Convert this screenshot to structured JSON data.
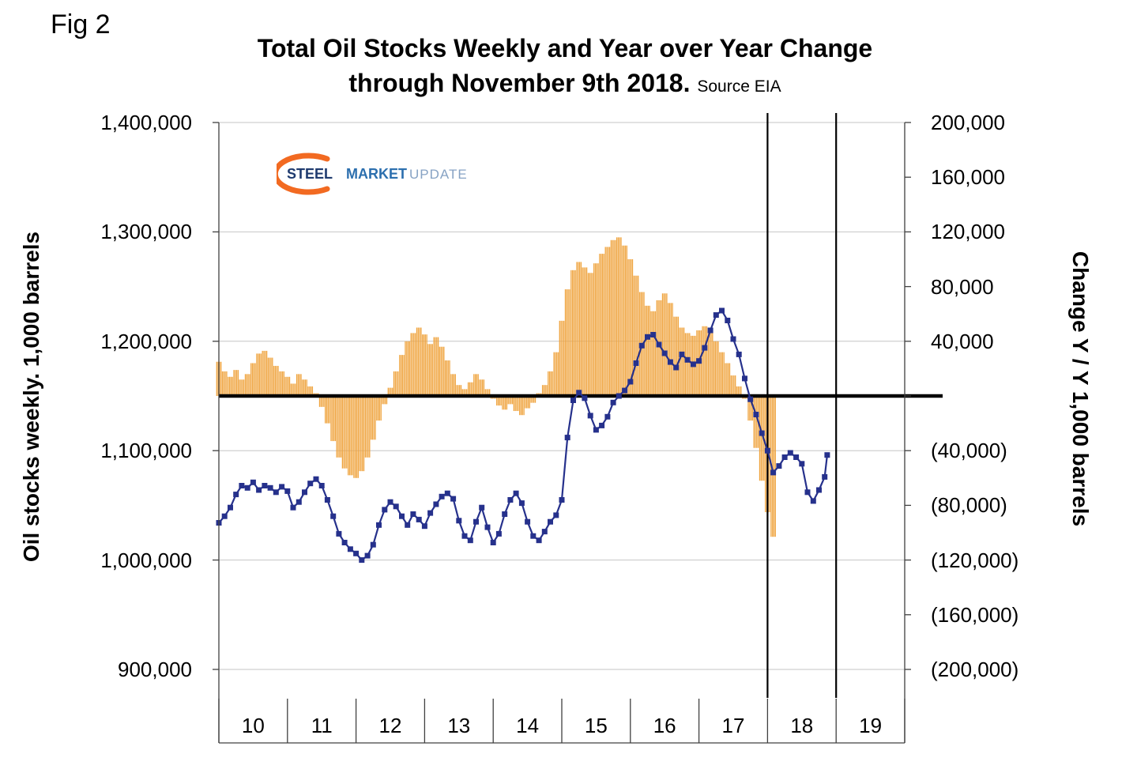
{
  "fig_label": "Fig 2",
  "title": {
    "line1": "Total Oil Stocks Weekly and Year over Year Change",
    "line2": "through November 9th 2018.",
    "source": "Source EIA"
  },
  "logo": {
    "word1": "STEEL",
    "word2": "MARKET",
    "word3": "UPDATE"
  },
  "colors": {
    "line_series": "#26318c",
    "bar_series": "#efa33d",
    "gridline": "#c6c6c6",
    "axis": "#404040",
    "zero_line": "#000000",
    "marker_line": "#000000",
    "logo_swoosh": "#f26a21"
  },
  "chart_data": {
    "type": "combo",
    "title": "Total Oil Stocks Weekly and Year over Year Change through November 9th 2018. Source EIA",
    "legend_position": "none",
    "grid": "horizontal",
    "left_axis": {
      "label": "Oil stocks weekly. 1,000 barrels",
      "min": 900000,
      "max": 1400000,
      "tick_step": 100000,
      "tick_labels": [
        "1,400,000",
        "1,300,000",
        "1,200,000",
        "1,100,000",
        "1,000,000",
        "900,000"
      ]
    },
    "right_axis": {
      "label": "Change Y / Y 1,000 barrels",
      "min": -200000,
      "max": 200000,
      "tick_step": 40000,
      "tick_labels": [
        "200,000",
        "160,000",
        "120,000",
        "80,000",
        "40,000",
        "",
        "(40,000)",
        "(80,000)",
        "(120,000)",
        "(160,000)",
        "(200,000)"
      ]
    },
    "x_axis": {
      "tick_labels": [
        "10",
        "11",
        "12",
        "13",
        "14",
        "15",
        "16",
        "17",
        "18",
        "19"
      ],
      "start_year": 2010,
      "end_year": 2020
    },
    "zero_line_right_value": 0,
    "marker_line_years": [
      2018,
      2019
    ],
    "series": [
      {
        "name": "yoy-change",
        "type": "bar",
        "axis": "right",
        "points": [
          [
            2010.0,
            25000
          ],
          [
            2010.083,
            18000
          ],
          [
            2010.167,
            14000
          ],
          [
            2010.25,
            19000
          ],
          [
            2010.333,
            12000
          ],
          [
            2010.417,
            16000
          ],
          [
            2010.5,
            24000
          ],
          [
            2010.583,
            31000
          ],
          [
            2010.667,
            33000
          ],
          [
            2010.75,
            28000
          ],
          [
            2010.833,
            22000
          ],
          [
            2010.917,
            18000
          ],
          [
            2011.0,
            14000
          ],
          [
            2011.083,
            9000
          ],
          [
            2011.167,
            16000
          ],
          [
            2011.25,
            12000
          ],
          [
            2011.333,
            7000
          ],
          [
            2011.417,
            2000
          ],
          [
            2011.5,
            -8000
          ],
          [
            2011.583,
            -20000
          ],
          [
            2011.667,
            -33000
          ],
          [
            2011.75,
            -45000
          ],
          [
            2011.833,
            -53000
          ],
          [
            2011.917,
            -58000
          ],
          [
            2012.0,
            -60000
          ],
          [
            2012.083,
            -55000
          ],
          [
            2012.167,
            -45000
          ],
          [
            2012.25,
            -32000
          ],
          [
            2012.333,
            -18000
          ],
          [
            2012.417,
            -6000
          ],
          [
            2012.5,
            6000
          ],
          [
            2012.583,
            18000
          ],
          [
            2012.667,
            30000
          ],
          [
            2012.75,
            40000
          ],
          [
            2012.833,
            46000
          ],
          [
            2012.917,
            50000
          ],
          [
            2013.0,
            45000
          ],
          [
            2013.083,
            38000
          ],
          [
            2013.167,
            43000
          ],
          [
            2013.25,
            36000
          ],
          [
            2013.333,
            26000
          ],
          [
            2013.417,
            16000
          ],
          [
            2013.5,
            8000
          ],
          [
            2013.583,
            5000
          ],
          [
            2013.667,
            10000
          ],
          [
            2013.75,
            16000
          ],
          [
            2013.833,
            12000
          ],
          [
            2013.917,
            5000
          ],
          [
            2014.0,
            -2000
          ],
          [
            2014.083,
            -7000
          ],
          [
            2014.167,
            -10000
          ],
          [
            2014.25,
            -6000
          ],
          [
            2014.333,
            -11000
          ],
          [
            2014.417,
            -14000
          ],
          [
            2014.5,
            -9000
          ],
          [
            2014.583,
            -5000
          ],
          [
            2014.667,
            2000
          ],
          [
            2014.75,
            8000
          ],
          [
            2014.833,
            18000
          ],
          [
            2014.917,
            32000
          ],
          [
            2015.0,
            55000
          ],
          [
            2015.083,
            78000
          ],
          [
            2015.167,
            92000
          ],
          [
            2015.25,
            98000
          ],
          [
            2015.333,
            94000
          ],
          [
            2015.417,
            90000
          ],
          [
            2015.5,
            97000
          ],
          [
            2015.583,
            104000
          ],
          [
            2015.667,
            109000
          ],
          [
            2015.75,
            114000
          ],
          [
            2015.833,
            116000
          ],
          [
            2015.917,
            110000
          ],
          [
            2016.0,
            100000
          ],
          [
            2016.083,
            88000
          ],
          [
            2016.167,
            76000
          ],
          [
            2016.25,
            66000
          ],
          [
            2016.333,
            62000
          ],
          [
            2016.417,
            70000
          ],
          [
            2016.5,
            75000
          ],
          [
            2016.583,
            68000
          ],
          [
            2016.667,
            58000
          ],
          [
            2016.75,
            50000
          ],
          [
            2016.833,
            46000
          ],
          [
            2016.917,
            44000
          ],
          [
            2017.0,
            48000
          ],
          [
            2017.083,
            51000
          ],
          [
            2017.167,
            47000
          ],
          [
            2017.25,
            40000
          ],
          [
            2017.333,
            32000
          ],
          [
            2017.417,
            24000
          ],
          [
            2017.5,
            15000
          ],
          [
            2017.583,
            7000
          ],
          [
            2017.667,
            -2000
          ],
          [
            2017.75,
            -18000
          ],
          [
            2017.833,
            -38000
          ],
          [
            2017.917,
            -62000
          ],
          [
            2018.0,
            -85000
          ],
          [
            2018.083,
            -103000
          ]
        ]
      },
      {
        "name": "oil-stocks-weekly",
        "type": "line",
        "axis": "left",
        "points": [
          [
            2010.0,
            1034000
          ],
          [
            2010.083,
            1040000
          ],
          [
            2010.167,
            1048000
          ],
          [
            2010.25,
            1060000
          ],
          [
            2010.333,
            1068000
          ],
          [
            2010.417,
            1066000
          ],
          [
            2010.5,
            1071000
          ],
          [
            2010.583,
            1064000
          ],
          [
            2010.667,
            1068000
          ],
          [
            2010.75,
            1066000
          ],
          [
            2010.833,
            1062000
          ],
          [
            2010.917,
            1067000
          ],
          [
            2011.0,
            1063000
          ],
          [
            2011.083,
            1048000
          ],
          [
            2011.167,
            1053000
          ],
          [
            2011.25,
            1062000
          ],
          [
            2011.333,
            1070000
          ],
          [
            2011.417,
            1074000
          ],
          [
            2011.5,
            1068000
          ],
          [
            2011.583,
            1055000
          ],
          [
            2011.667,
            1040000
          ],
          [
            2011.75,
            1024000
          ],
          [
            2011.833,
            1016000
          ],
          [
            2011.917,
            1010000
          ],
          [
            2012.0,
            1006000
          ],
          [
            2012.083,
            1000000
          ],
          [
            2012.167,
            1004000
          ],
          [
            2012.25,
            1014000
          ],
          [
            2012.333,
            1032000
          ],
          [
            2012.417,
            1046000
          ],
          [
            2012.5,
            1053000
          ],
          [
            2012.583,
            1049000
          ],
          [
            2012.667,
            1040000
          ],
          [
            2012.75,
            1032000
          ],
          [
            2012.833,
            1042000
          ],
          [
            2012.917,
            1037000
          ],
          [
            2013.0,
            1031000
          ],
          [
            2013.083,
            1043000
          ],
          [
            2013.167,
            1051000
          ],
          [
            2013.25,
            1058000
          ],
          [
            2013.333,
            1061000
          ],
          [
            2013.417,
            1056000
          ],
          [
            2013.5,
            1036000
          ],
          [
            2013.583,
            1022000
          ],
          [
            2013.667,
            1018000
          ],
          [
            2013.75,
            1035000
          ],
          [
            2013.833,
            1048000
          ],
          [
            2013.917,
            1030000
          ],
          [
            2014.0,
            1016000
          ],
          [
            2014.083,
            1024000
          ],
          [
            2014.167,
            1042000
          ],
          [
            2014.25,
            1055000
          ],
          [
            2014.333,
            1061000
          ],
          [
            2014.417,
            1052000
          ],
          [
            2014.5,
            1035000
          ],
          [
            2014.583,
            1022000
          ],
          [
            2014.667,
            1018000
          ],
          [
            2014.75,
            1026000
          ],
          [
            2014.833,
            1035000
          ],
          [
            2014.917,
            1041000
          ],
          [
            2015.0,
            1055000
          ],
          [
            2015.083,
            1112000
          ],
          [
            2015.167,
            1146000
          ],
          [
            2015.25,
            1153000
          ],
          [
            2015.333,
            1148000
          ],
          [
            2015.417,
            1132000
          ],
          [
            2015.5,
            1119000
          ],
          [
            2015.583,
            1123000
          ],
          [
            2015.667,
            1131000
          ],
          [
            2015.75,
            1144000
          ],
          [
            2015.833,
            1150000
          ],
          [
            2015.917,
            1155000
          ],
          [
            2016.0,
            1163000
          ],
          [
            2016.083,
            1180000
          ],
          [
            2016.167,
            1196000
          ],
          [
            2016.25,
            1204000
          ],
          [
            2016.333,
            1206000
          ],
          [
            2016.417,
            1197000
          ],
          [
            2016.5,
            1189000
          ],
          [
            2016.583,
            1181000
          ],
          [
            2016.667,
            1176000
          ],
          [
            2016.75,
            1188000
          ],
          [
            2016.833,
            1183000
          ],
          [
            2016.917,
            1179000
          ],
          [
            2017.0,
            1182000
          ],
          [
            2017.083,
            1194000
          ],
          [
            2017.167,
            1210000
          ],
          [
            2017.25,
            1224000
          ],
          [
            2017.333,
            1228000
          ],
          [
            2017.417,
            1219000
          ],
          [
            2017.5,
            1202000
          ],
          [
            2017.583,
            1188000
          ],
          [
            2017.667,
            1166000
          ],
          [
            2017.75,
            1147000
          ],
          [
            2017.833,
            1133000
          ],
          [
            2017.917,
            1116000
          ],
          [
            2018.0,
            1100000
          ],
          [
            2018.083,
            1080000
          ],
          [
            2018.167,
            1086000
          ],
          [
            2018.25,
            1094000
          ],
          [
            2018.333,
            1098000
          ],
          [
            2018.417,
            1094000
          ],
          [
            2018.5,
            1088000
          ],
          [
            2018.583,
            1062000
          ],
          [
            2018.667,
            1054000
          ],
          [
            2018.75,
            1064000
          ],
          [
            2018.833,
            1076000
          ],
          [
            2018.87,
            1096000
          ]
        ]
      }
    ]
  }
}
